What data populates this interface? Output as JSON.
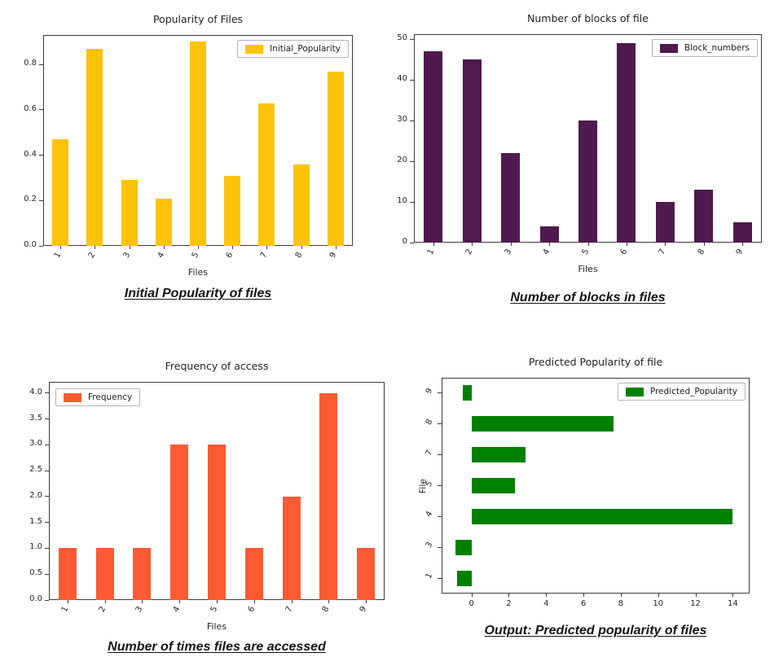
{
  "page": {
    "background": "#ffffff"
  },
  "chart_data": [
    {
      "id": "popularity",
      "type": "bar",
      "title": "Popularity of Files",
      "xlabel": "Files",
      "categories": [
        "1",
        "2",
        "3",
        "4",
        "5",
        "6",
        "7",
        "8",
        "9"
      ],
      "series": [
        {
          "name": "Initial_Popularity",
          "color": "#FDC30B",
          "values": [
            0.47,
            0.87,
            0.29,
            0.21,
            0.9,
            0.31,
            0.63,
            0.36,
            0.77
          ]
        }
      ],
      "ylim": [
        0,
        0.93
      ],
      "yticks": [
        "0.0",
        "0.2",
        "0.4",
        "0.6",
        "0.8"
      ],
      "grid": false,
      "legend_position": "top-right",
      "caption": "Initial Popularity of files"
    },
    {
      "id": "blocks",
      "type": "bar",
      "title": "Number of blocks of file",
      "xlabel": "Files",
      "categories": [
        "1",
        "2",
        "3",
        "4",
        "5",
        "6",
        "7",
        "8",
        "9"
      ],
      "series": [
        {
          "name": "Block_numbers",
          "color": "#4F1A4D",
          "values": [
            47,
            45,
            22,
            4,
            30,
            49,
            10,
            13,
            5
          ]
        }
      ],
      "ylim": [
        0,
        51.2
      ],
      "yticks": [
        "0",
        "10",
        "20",
        "30",
        "40",
        "50"
      ],
      "grid": false,
      "legend_position": "top-right",
      "caption": "Number of blocks in files"
    },
    {
      "id": "frequency",
      "type": "bar",
      "title": "Frequency of access",
      "xlabel": "Files",
      "categories": [
        "1",
        "2",
        "3",
        "4",
        "5",
        "6",
        "7",
        "8",
        "9"
      ],
      "series": [
        {
          "name": "Frequency",
          "color": "#FB5A33",
          "values": [
            1,
            1,
            1,
            3,
            3,
            1,
            2,
            4,
            1
          ]
        }
      ],
      "ylim": [
        0,
        4.22
      ],
      "yticks": [
        "0.0",
        "0.5",
        "1.0",
        "1.5",
        "2.0",
        "2.5",
        "3.0",
        "3.5",
        "4.0"
      ],
      "grid": false,
      "legend_position": "top-left",
      "caption": "Number of times files are accessed"
    },
    {
      "id": "predicted",
      "type": "barh",
      "title": "Predicted Popularity of file",
      "ylabel": "File",
      "categories": [
        "1",
        "3",
        "4",
        "5",
        "7",
        "8",
        "9"
      ],
      "series": [
        {
          "name": "Predicted_Popularity",
          "color": "#008000",
          "values": [
            -0.75,
            -0.85,
            14,
            2.35,
            2.9,
            7.6,
            -0.45
          ]
        }
      ],
      "xlim": [
        -1.6,
        14.9
      ],
      "xticks": [
        "0",
        "2",
        "4",
        "6",
        "8",
        "10",
        "12",
        "14"
      ],
      "grid": false,
      "legend_position": "top-right",
      "caption": "Output: Predicted popularity of files"
    }
  ]
}
